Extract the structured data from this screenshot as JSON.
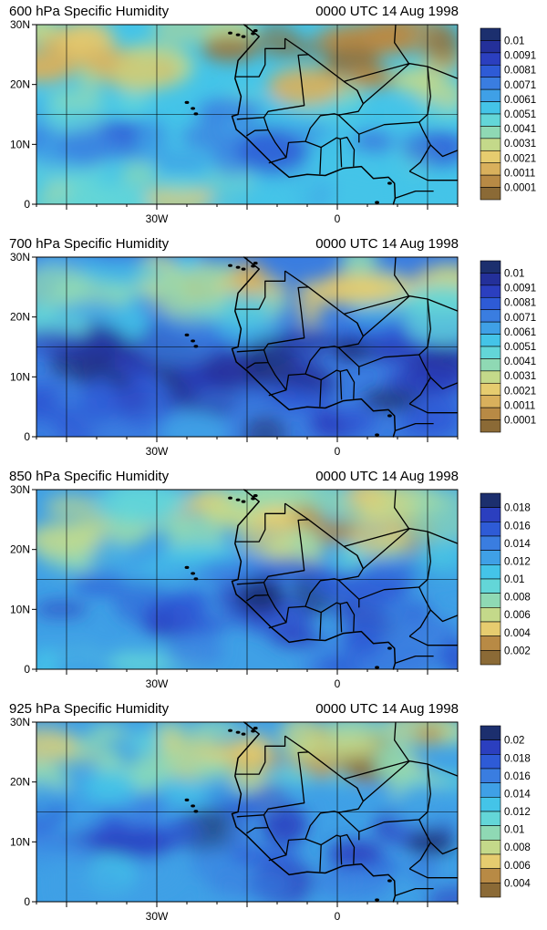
{
  "figure": {
    "panels": [
      {
        "title_left": "600 hPa Specific Humidity",
        "title_right": "0000 UTC 14 Aug 1998",
        "colorbar": {
          "labels": [
            "0.01",
            "0.0091",
            "0.0081",
            "0.0071",
            "0.0061",
            "0.0051",
            "0.0041",
            "0.0031",
            "0.0021",
            "0.0011",
            "0.0001"
          ],
          "colors": [
            "#1c2f6e",
            "#24309a",
            "#2b3fbf",
            "#2e5bd6",
            "#3a7de0",
            "#3fa0e6",
            "#44c4e8",
            "#63d6d8",
            "#8fd9b4",
            "#c4d98a",
            "#e6cc6f",
            "#d9b05c",
            "#b88a45",
            "#8b6a36"
          ]
        },
        "moisture_level": 0.35
      },
      {
        "title_left": "700 hPa Specific Humidity",
        "title_right": "0000 UTC 14 Aug 1998",
        "colorbar": {
          "labels": [
            "0.01",
            "0.0091",
            "0.0081",
            "0.0071",
            "0.0061",
            "0.0051",
            "0.0041",
            "0.0031",
            "0.0021",
            "0.0011",
            "0.0001"
          ],
          "colors": [
            "#1c2f6e",
            "#24309a",
            "#2b3fbf",
            "#2e5bd6",
            "#3a7de0",
            "#3fa0e6",
            "#44c4e8",
            "#63d6d8",
            "#8fd9b4",
            "#c4d98a",
            "#e6cc6f",
            "#d9b05c",
            "#b88a45",
            "#8b6a36"
          ]
        },
        "moisture_level": 0.62
      },
      {
        "title_left": "850 hPa Specific Humidity",
        "title_right": "0000 UTC 14 Aug 1998",
        "colorbar": {
          "labels": [
            "0.018",
            "0.016",
            "0.014",
            "0.012",
            "0.01",
            "0.008",
            "0.006",
            "0.004",
            "0.002"
          ],
          "colors": [
            "#1c2f6e",
            "#2b3fbf",
            "#2e5bd6",
            "#3a7de0",
            "#3fa0e6",
            "#44c4e8",
            "#63d6d8",
            "#8fd9b4",
            "#c4d98a",
            "#e6cc6f",
            "#b88a45",
            "#8b6a36"
          ]
        },
        "moisture_level": 0.52
      },
      {
        "title_left": "925 hPa Specific Humidity",
        "title_right": "0000 UTC 14 Aug 1998",
        "colorbar": {
          "labels": [
            "0.02",
            "0.018",
            "0.016",
            "0.014",
            "0.012",
            "0.01",
            "0.008",
            "0.006",
            "0.004"
          ],
          "colors": [
            "#1c2f6e",
            "#2b3fbf",
            "#2e5bd6",
            "#3a7de0",
            "#3fa0e6",
            "#44c4e8",
            "#63d6d8",
            "#8fd9b4",
            "#c4d98a",
            "#e6cc6f",
            "#b88a45",
            "#8b6a36"
          ]
        },
        "moisture_level": 0.5
      }
    ],
    "y_ticks": [
      "30N",
      "20N",
      "10N",
      "0"
    ],
    "x_ticks": [
      "30W",
      "0"
    ],
    "lat_range": [
      0,
      30
    ],
    "lon_range": [
      -50,
      20
    ]
  }
}
